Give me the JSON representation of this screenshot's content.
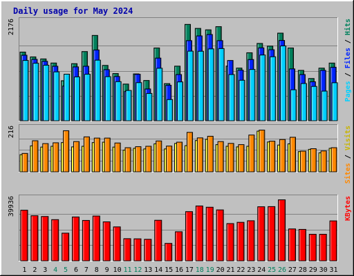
{
  "title": "Daily usage for May 2024",
  "colors": {
    "background": "#c0c0c0",
    "title": "#0000aa",
    "hits": "#00805c",
    "files": "#0024ff",
    "pages": "#00d0ff",
    "visits": "#ffff00",
    "sites": "#ff8800",
    "kbytes": "#ff0000",
    "weekend_day": "#00805c",
    "weekday": "#000000"
  },
  "chart_data": [
    {
      "type": "bar",
      "panel": "hits-files-pages",
      "ymax_label": "2176",
      "ylim": [
        0,
        2176
      ],
      "legend": {
        "pages": "Pages",
        "files": "Files",
        "hits": "Hits",
        "sep": "/"
      },
      "categories": [
        "1",
        "2",
        "3",
        "4",
        "5",
        "6",
        "7",
        "8",
        "9",
        "10",
        "11",
        "12",
        "13",
        "14",
        "15",
        "16",
        "17",
        "18",
        "19",
        "20",
        "21",
        "22",
        "23",
        "24",
        "25",
        "26",
        "27",
        "28",
        "29",
        "30",
        "31"
      ],
      "weekend": [
        "4",
        "5",
        "11",
        "12",
        "18",
        "19",
        "25",
        "26"
      ],
      "series": [
        {
          "name": "Hits",
          "values": [
            1494,
            1389,
            1345,
            1256,
            871,
            1242,
            1505,
            1856,
            1204,
            1027,
            798,
            1019,
            876,
            1583,
            808,
            1188,
            2096,
            2009,
            1978,
            2047,
            1190,
            1146,
            1479,
            1682,
            1624,
            1906,
            1583,
            1096,
            919,
            1145,
            1255
          ]
        },
        {
          "name": "Files",
          "values": [
            1426,
            1336,
            1293,
            1186,
            756,
            1172,
            1186,
            1540,
            1112,
            963,
            639,
            1011,
            692,
            1363,
            773,
            1005,
            1743,
            1846,
            1876,
            1743,
            1311,
            1100,
            1332,
            1586,
            1545,
            1747,
            1128,
            1005,
            848,
            1096,
            1164
          ]
        },
        {
          "name": "Pages",
          "values": [
            1312,
            1251,
            1208,
            1063,
            1013,
            954,
            1012,
            1318,
            959,
            851,
            659,
            829,
            594,
            1142,
            461,
            845,
            1514,
            1512,
            1563,
            1570,
            1005,
            881,
            1116,
            1430,
            1392,
            1628,
            674,
            810,
            747,
            645,
            827
          ]
        }
      ]
    },
    {
      "type": "bar",
      "panel": "visits-sites",
      "ymax_label": "216",
      "ylim": [
        0,
        216
      ],
      "legend": {
        "sites": "Sites",
        "visits": "Visits",
        "sep": "/"
      },
      "categories": [
        "1",
        "2",
        "3",
        "4",
        "5",
        "6",
        "7",
        "8",
        "9",
        "10",
        "11",
        "12",
        "13",
        "14",
        "15",
        "16",
        "17",
        "18",
        "19",
        "20",
        "21",
        "22",
        "23",
        "24",
        "25",
        "26",
        "27",
        "28",
        "29",
        "30",
        "31"
      ],
      "weekend": [
        "4",
        "5",
        "11",
        "12",
        "18",
        "19",
        "25",
        "26"
      ],
      "series": [
        {
          "name": "Visits",
          "values": [
            84,
            127,
            121,
            125,
            143,
            122,
            125,
            143,
            145,
            121,
            106,
            115,
            112,
            137,
            112,
            139,
            128,
            153,
            159,
            133,
            125,
            122,
            125,
            199,
            146,
            131,
            137,
            99,
            110,
            93,
            115
          ]
        },
        {
          "name": "Sites",
          "values": [
            90,
            152,
            138,
            142,
            201,
            148,
            171,
            165,
            165,
            141,
            118,
            123,
            125,
            151,
            126,
            145,
            193,
            166,
            174,
            148,
            139,
            133,
            180,
            204,
            150,
            158,
            169,
            101,
            113,
            102,
            118
          ]
        }
      ]
    },
    {
      "type": "bar",
      "panel": "kbytes",
      "ymax_label": "39936",
      "ylim": [
        0,
        39936
      ],
      "legend": {
        "kbytes": "KBytes"
      },
      "categories": [
        "1",
        "2",
        "3",
        "4",
        "5",
        "6",
        "7",
        "8",
        "9",
        "10",
        "11",
        "12",
        "13",
        "14",
        "15",
        "16",
        "17",
        "18",
        "19",
        "20",
        "21",
        "22",
        "23",
        "24",
        "25",
        "26",
        "27",
        "28",
        "29",
        "30",
        "31"
      ],
      "weekend": [
        "4",
        "5",
        "11",
        "12",
        "18",
        "19",
        "25",
        "26"
      ],
      "series": [
        {
          "name": "KBytes",
          "values": [
            32200,
            28700,
            28200,
            26200,
            17600,
            27900,
            25700,
            28500,
            24800,
            21600,
            14100,
            14000,
            13700,
            25800,
            11100,
            18500,
            31300,
            34900,
            34100,
            32400,
            23700,
            24500,
            25500,
            34400,
            34500,
            38800,
            20300,
            20000,
            16900,
            16900,
            25400
          ]
        }
      ]
    }
  ]
}
